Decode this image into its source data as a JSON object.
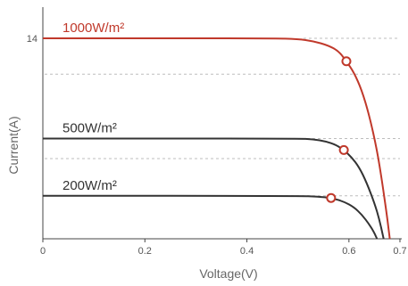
{
  "chart_data": {
    "type": "line",
    "title": "",
    "xlabel": "Voltage(V)",
    "ylabel": "Current(A)",
    "xlim": [
      0,
      0.7
    ],
    "ylim": [
      0,
      15
    ],
    "x_ticks": [
      0,
      0.2,
      0.4,
      0.6,
      0.7
    ],
    "x_tick_labels": [
      "0",
      "0.2",
      "0.4",
      "0.6",
      "0.7"
    ],
    "y_ticks": [
      14
    ],
    "y_tick_labels": [
      "14"
    ],
    "grid": "horizontal dashed, right portion",
    "series": [
      {
        "name": "1000W/m²",
        "color": "#c0392b",
        "points": [
          [
            0,
            14.0
          ],
          [
            0.45,
            14.0
          ],
          [
            0.5,
            13.95
          ],
          [
            0.53,
            13.8
          ],
          [
            0.56,
            13.5
          ],
          [
            0.58,
            13.1
          ],
          [
            0.595,
            12.4
          ],
          [
            0.61,
            11.6
          ],
          [
            0.625,
            10.4
          ],
          [
            0.64,
            8.6
          ],
          [
            0.655,
            6.2
          ],
          [
            0.665,
            4.0
          ],
          [
            0.675,
            1.5
          ],
          [
            0.68,
            0
          ]
        ],
        "mpp": [
          0.595,
          12.4
        ]
      },
      {
        "name": "500W/m²",
        "color": "#333333",
        "points": [
          [
            0,
            7.0
          ],
          [
            0.5,
            7.0
          ],
          [
            0.53,
            6.95
          ],
          [
            0.555,
            6.8
          ],
          [
            0.575,
            6.55
          ],
          [
            0.59,
            6.2
          ],
          [
            0.605,
            5.7
          ],
          [
            0.62,
            5.0
          ],
          [
            0.635,
            3.9
          ],
          [
            0.65,
            2.5
          ],
          [
            0.66,
            1.3
          ],
          [
            0.668,
            0
          ]
        ],
        "mpp": [
          0.59,
          6.2
        ]
      },
      {
        "name": "200W/m²",
        "color": "#333333",
        "points": [
          [
            0,
            3.0
          ],
          [
            0.5,
            3.0
          ],
          [
            0.54,
            2.95
          ],
          [
            0.565,
            2.85
          ],
          [
            0.59,
            2.6
          ],
          [
            0.61,
            2.2
          ],
          [
            0.625,
            1.7
          ],
          [
            0.64,
            1.0
          ],
          [
            0.65,
            0.4
          ],
          [
            0.655,
            0
          ]
        ],
        "mpp": [
          0.565,
          2.85
        ]
      }
    ]
  }
}
